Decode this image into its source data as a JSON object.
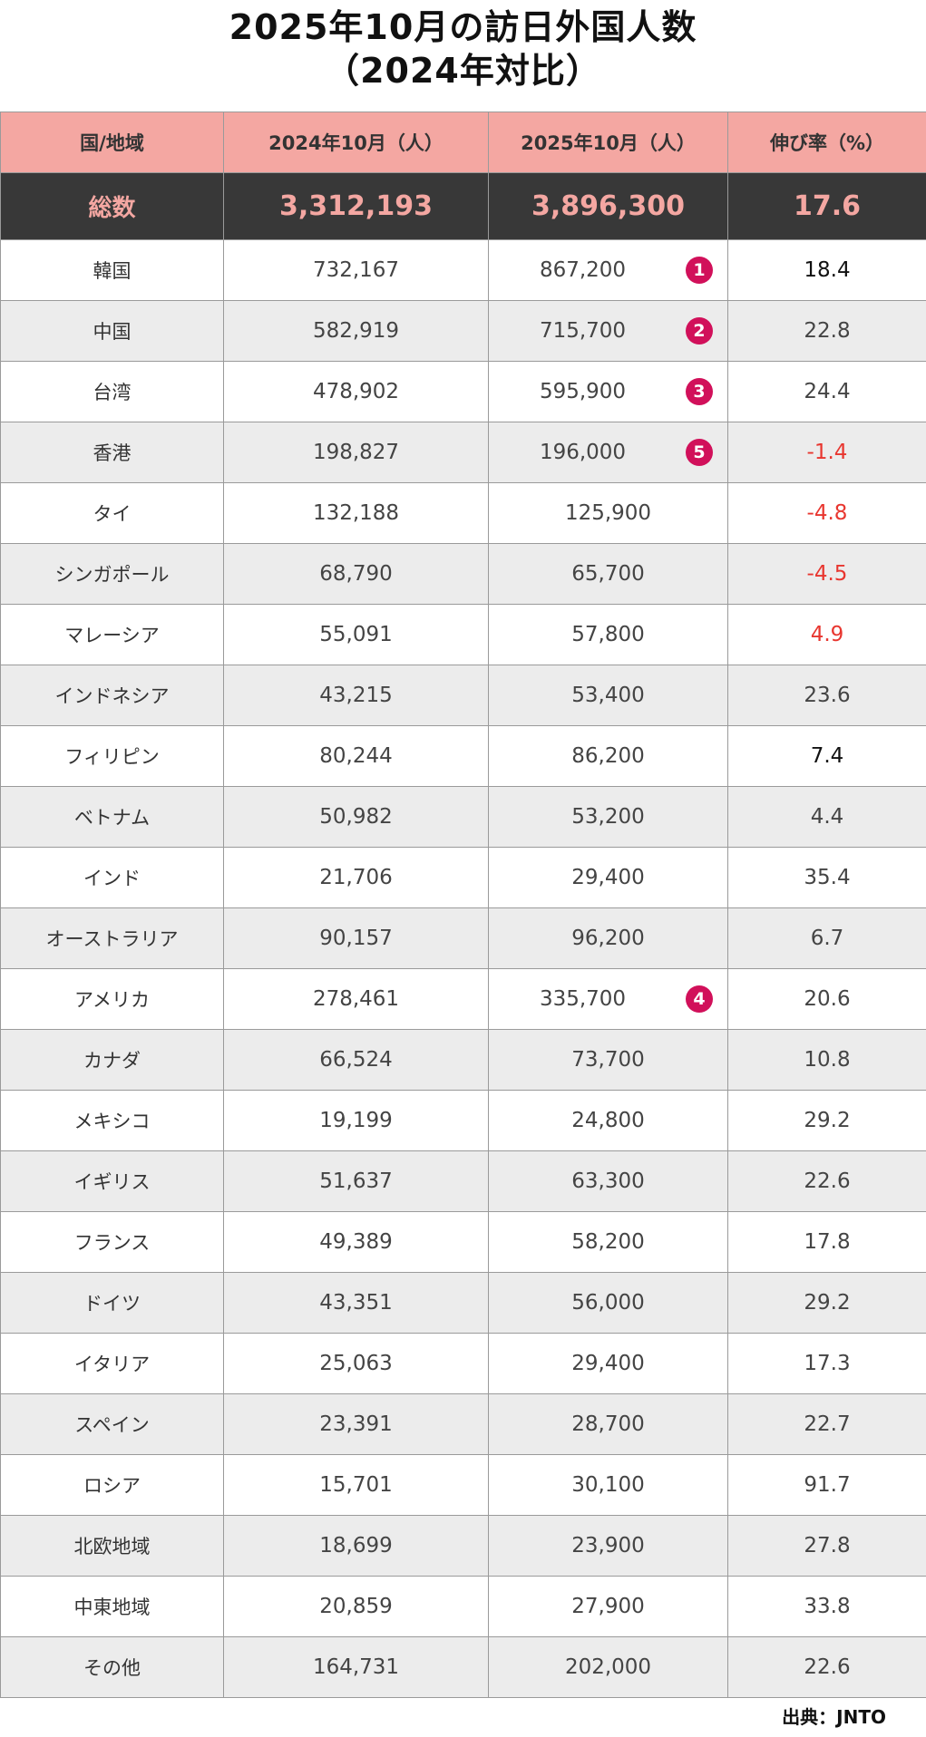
{
  "title_line1": "2025年10月の訪日外国人数",
  "title_line2": "（2024年対比）",
  "source": "出典：JNTO",
  "colors": {
    "header_bg": "#f4a7a2",
    "total_bg": "#383838",
    "rank_badge": "#d1105a",
    "negative": "#e8362f"
  },
  "chart_data": {
    "type": "table",
    "columns": [
      "国/地域",
      "2024年10月（人）",
      "2025年10月（人）",
      "伸び率（%）"
    ],
    "total": {
      "name": "総数",
      "v2024": "3,312,193",
      "v2025": "3,896,300",
      "rate": "17.6"
    },
    "rows": [
      {
        "name": "韓国",
        "v2024": "732,167",
        "v2025": "867,200",
        "rate": "18.4",
        "rank": "1",
        "rate_color": "dark"
      },
      {
        "name": "中国",
        "v2024": "582,919",
        "v2025": "715,700",
        "rate": "22.8",
        "rank": "2"
      },
      {
        "name": "台湾",
        "v2024": "478,902",
        "v2025": "595,900",
        "rate": "24.4",
        "rank": "3"
      },
      {
        "name": "香港",
        "v2024": "198,827",
        "v2025": "196,000",
        "rate": "-1.4",
        "rank": "5",
        "rate_color": "neg"
      },
      {
        "name": "タイ",
        "v2024": "132,188",
        "v2025": "125,900",
        "rate": "-4.8",
        "rate_color": "neg"
      },
      {
        "name": "シンガポール",
        "v2024": "68,790",
        "v2025": "65,700",
        "rate": "-4.5",
        "rate_color": "neg"
      },
      {
        "name": "マレーシア",
        "v2024": "55,091",
        "v2025": "57,800",
        "rate": "4.9",
        "rate_color": "neg"
      },
      {
        "name": "インドネシア",
        "v2024": "43,215",
        "v2025": "53,400",
        "rate": "23.6"
      },
      {
        "name": "フィリピン",
        "v2024": "80,244",
        "v2025": "86,200",
        "rate": "7.4",
        "rate_color": "dark"
      },
      {
        "name": "ベトナム",
        "v2024": "50,982",
        "v2025": "53,200",
        "rate": "4.4"
      },
      {
        "name": "インド",
        "v2024": "21,706",
        "v2025": "29,400",
        "rate": "35.4"
      },
      {
        "name": "オーストラリア",
        "v2024": "90,157",
        "v2025": "96,200",
        "rate": "6.7"
      },
      {
        "name": "アメリカ",
        "v2024": "278,461",
        "v2025": "335,700",
        "rate": "20.6",
        "rank": "4"
      },
      {
        "name": "カナダ",
        "v2024": "66,524",
        "v2025": "73,700",
        "rate": "10.8"
      },
      {
        "name": "メキシコ",
        "v2024": "19,199",
        "v2025": "24,800",
        "rate": "29.2"
      },
      {
        "name": "イギリス",
        "v2024": "51,637",
        "v2025": "63,300",
        "rate": "22.6"
      },
      {
        "name": "フランス",
        "v2024": "49,389",
        "v2025": "58,200",
        "rate": "17.8"
      },
      {
        "name": "ドイツ",
        "v2024": "43,351",
        "v2025": "56,000",
        "rate": "29.2"
      },
      {
        "name": "イタリア",
        "v2024": "25,063",
        "v2025": "29,400",
        "rate": "17.3"
      },
      {
        "name": "スペイン",
        "v2024": "23,391",
        "v2025": "28,700",
        "rate": "22.7"
      },
      {
        "name": "ロシア",
        "v2024": "15,701",
        "v2025": "30,100",
        "rate": "91.7"
      },
      {
        "name": "北欧地域",
        "v2024": "18,699",
        "v2025": "23,900",
        "rate": "27.8"
      },
      {
        "name": "中東地域",
        "v2024": "20,859",
        "v2025": "27,900",
        "rate": "33.8"
      },
      {
        "name": "その他",
        "v2024": "164,731",
        "v2025": "202,000",
        "rate": "22.6"
      }
    ]
  }
}
